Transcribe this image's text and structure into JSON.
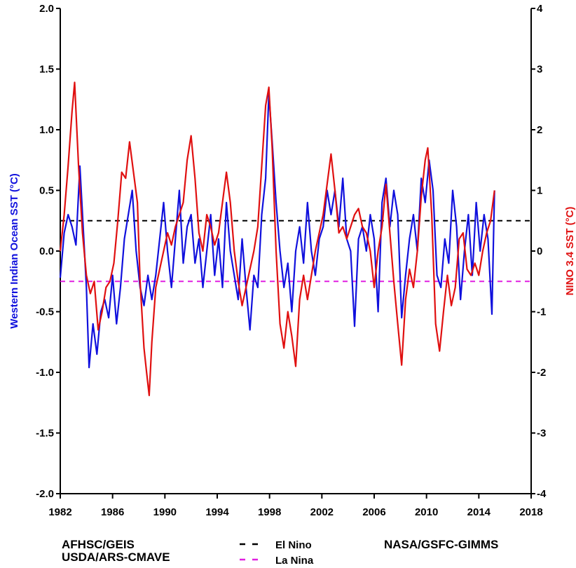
{
  "chart_data": {
    "type": "line",
    "title": "",
    "x_ticks": [
      "1982",
      "1986",
      "1990",
      "1994",
      "1998",
      "2002",
      "2006",
      "2010",
      "2014",
      "2018"
    ],
    "xlim": [
      1982,
      2018
    ],
    "left_axis": {
      "label": "Western Indian Ocean SST (°C)",
      "ylim": [
        -2.0,
        2.0
      ],
      "ticks": [
        "-2.0",
        "-1.5",
        "-1.0",
        "-0.5",
        "0.0",
        "0.5",
        "1.0",
        "1.5",
        "2.0"
      ],
      "color": "#1010dd"
    },
    "right_axis": {
      "label": "NINO 3.4 SST (°C)",
      "ylim": [
        -4,
        4
      ],
      "ticks": [
        "-4",
        "-3",
        "-2",
        "-1",
        "0",
        "1",
        "2",
        "3",
        "4"
      ],
      "color": "#e01010"
    },
    "reference_lines": [
      {
        "name": "El Nino",
        "y": 0.25,
        "axis": "left",
        "color": "#000000",
        "style": "dashed"
      },
      {
        "name": "La Nina",
        "y": -0.25,
        "axis": "left",
        "color": "#e020e0",
        "style": "dashed"
      }
    ],
    "series": [
      {
        "color": "#1010dd",
        "axis": "left",
        "points": [
          [
            1982.0,
            -0.22
          ],
          [
            1982.3,
            0.15
          ],
          [
            1982.6,
            0.3
          ],
          [
            1982.9,
            0.2
          ],
          [
            1983.2,
            0.05
          ],
          [
            1983.5,
            0.7
          ],
          [
            1983.8,
            0.1
          ],
          [
            1984.0,
            -0.3
          ],
          [
            1984.2,
            -0.96
          ],
          [
            1984.5,
            -0.6
          ],
          [
            1984.8,
            -0.85
          ],
          [
            1985.1,
            -0.5
          ],
          [
            1985.4,
            -0.4
          ],
          [
            1985.7,
            -0.55
          ],
          [
            1986.0,
            -0.2
          ],
          [
            1986.3,
            -0.6
          ],
          [
            1986.6,
            -0.3
          ],
          [
            1986.9,
            0.1
          ],
          [
            1987.2,
            0.3
          ],
          [
            1987.5,
            0.5
          ],
          [
            1987.8,
            0.0
          ],
          [
            1988.1,
            -0.3
          ],
          [
            1988.4,
            -0.45
          ],
          [
            1988.7,
            -0.2
          ],
          [
            1989.0,
            -0.4
          ],
          [
            1989.3,
            -0.2
          ],
          [
            1989.6,
            0.1
          ],
          [
            1989.9,
            0.4
          ],
          [
            1990.2,
            0.0
          ],
          [
            1990.5,
            -0.3
          ],
          [
            1990.8,
            0.1
          ],
          [
            1991.1,
            0.5
          ],
          [
            1991.4,
            -0.1
          ],
          [
            1991.7,
            0.2
          ],
          [
            1992.0,
            0.3
          ],
          [
            1992.3,
            -0.1
          ],
          [
            1992.6,
            0.1
          ],
          [
            1992.9,
            -0.3
          ],
          [
            1993.2,
            0.0
          ],
          [
            1993.5,
            0.3
          ],
          [
            1993.8,
            -0.2
          ],
          [
            1994.1,
            0.1
          ],
          [
            1994.4,
            -0.3
          ],
          [
            1994.7,
            0.4
          ],
          [
            1995.0,
            0.0
          ],
          [
            1995.3,
            -0.2
          ],
          [
            1995.6,
            -0.4
          ],
          [
            1995.9,
            0.1
          ],
          [
            1996.2,
            -0.3
          ],
          [
            1996.5,
            -0.65
          ],
          [
            1996.8,
            -0.2
          ],
          [
            1997.1,
            -0.3
          ],
          [
            1997.4,
            0.3
          ],
          [
            1997.7,
            0.6
          ],
          [
            1997.95,
            1.3
          ],
          [
            1998.2,
            0.9
          ],
          [
            1998.5,
            0.4
          ],
          [
            1998.8,
            0.0
          ],
          [
            1999.1,
            -0.3
          ],
          [
            1999.4,
            -0.1
          ],
          [
            1999.7,
            -0.5
          ],
          [
            2000.0,
            0.0
          ],
          [
            2000.3,
            0.2
          ],
          [
            2000.6,
            -0.1
          ],
          [
            2000.9,
            0.4
          ],
          [
            2001.2,
            0.0
          ],
          [
            2001.5,
            -0.2
          ],
          [
            2001.8,
            0.1
          ],
          [
            2002.1,
            0.2
          ],
          [
            2002.4,
            0.5
          ],
          [
            2002.7,
            0.3
          ],
          [
            2003.0,
            0.5
          ],
          [
            2003.3,
            0.2
          ],
          [
            2003.6,
            0.6
          ],
          [
            2003.9,
            0.1
          ],
          [
            2004.2,
            0.0
          ],
          [
            2004.5,
            -0.62
          ],
          [
            2004.8,
            0.1
          ],
          [
            2005.1,
            0.2
          ],
          [
            2005.4,
            0.0
          ],
          [
            2005.7,
            0.3
          ],
          [
            2006.0,
            0.1
          ],
          [
            2006.3,
            -0.5
          ],
          [
            2006.6,
            0.4
          ],
          [
            2006.9,
            0.6
          ],
          [
            2007.2,
            0.2
          ],
          [
            2007.5,
            0.5
          ],
          [
            2007.8,
            0.3
          ],
          [
            2008.1,
            -0.55
          ],
          [
            2008.4,
            -0.2
          ],
          [
            2008.7,
            0.1
          ],
          [
            2009.0,
            0.3
          ],
          [
            2009.3,
            0.0
          ],
          [
            2009.6,
            0.6
          ],
          [
            2009.9,
            0.4
          ],
          [
            2010.2,
            0.75
          ],
          [
            2010.5,
            0.5
          ],
          [
            2010.8,
            -0.2
          ],
          [
            2011.1,
            -0.3
          ],
          [
            2011.4,
            0.1
          ],
          [
            2011.7,
            -0.1
          ],
          [
            2012.0,
            0.5
          ],
          [
            2012.3,
            0.2
          ],
          [
            2012.6,
            -0.4
          ],
          [
            2012.9,
            0.0
          ],
          [
            2013.2,
            0.3
          ],
          [
            2013.5,
            -0.2
          ],
          [
            2013.8,
            0.4
          ],
          [
            2014.1,
            0.0
          ],
          [
            2014.4,
            0.3
          ],
          [
            2014.7,
            0.1
          ],
          [
            2015.0,
            -0.52
          ],
          [
            2015.2,
            0.5
          ]
        ]
      },
      {
        "color": "#e01010",
        "axis": "right",
        "points": [
          [
            1982.0,
            0.0
          ],
          [
            1982.3,
            0.6
          ],
          [
            1982.6,
            1.4
          ],
          [
            1982.9,
            2.3
          ],
          [
            1983.1,
            2.78
          ],
          [
            1983.4,
            1.4
          ],
          [
            1983.7,
            0.3
          ],
          [
            1984.0,
            -0.4
          ],
          [
            1984.3,
            -0.7
          ],
          [
            1984.6,
            -0.5
          ],
          [
            1984.9,
            -1.3
          ],
          [
            1985.2,
            -1.0
          ],
          [
            1985.5,
            -0.6
          ],
          [
            1985.8,
            -0.5
          ],
          [
            1986.1,
            -0.2
          ],
          [
            1986.4,
            0.5
          ],
          [
            1986.7,
            1.3
          ],
          [
            1987.0,
            1.2
          ],
          [
            1987.3,
            1.8
          ],
          [
            1987.6,
            1.3
          ],
          [
            1987.9,
            0.8
          ],
          [
            1988.1,
            -0.5
          ],
          [
            1988.4,
            -1.6
          ],
          [
            1988.6,
            -2.0
          ],
          [
            1988.8,
            -2.38
          ],
          [
            1989.0,
            -1.5
          ],
          [
            1989.3,
            -0.6
          ],
          [
            1989.6,
            -0.3
          ],
          [
            1989.9,
            0.0
          ],
          [
            1990.2,
            0.3
          ],
          [
            1990.5,
            0.1
          ],
          [
            1990.8,
            0.4
          ],
          [
            1991.1,
            0.6
          ],
          [
            1991.4,
            0.8
          ],
          [
            1991.7,
            1.5
          ],
          [
            1992.0,
            1.9
          ],
          [
            1992.3,
            1.2
          ],
          [
            1992.6,
            0.3
          ],
          [
            1992.9,
            0.0
          ],
          [
            1993.2,
            0.6
          ],
          [
            1993.5,
            0.4
          ],
          [
            1993.8,
            0.1
          ],
          [
            1994.1,
            0.3
          ],
          [
            1994.4,
            0.8
          ],
          [
            1994.7,
            1.3
          ],
          [
            1995.0,
            0.8
          ],
          [
            1995.3,
            0.0
          ],
          [
            1995.6,
            -0.5
          ],
          [
            1995.9,
            -0.9
          ],
          [
            1996.2,
            -0.6
          ],
          [
            1996.5,
            -0.3
          ],
          [
            1996.8,
            0.0
          ],
          [
            1997.1,
            0.4
          ],
          [
            1997.4,
            1.4
          ],
          [
            1997.7,
            2.4
          ],
          [
            1997.95,
            2.7
          ],
          [
            1998.2,
            1.7
          ],
          [
            1998.5,
            0.0
          ],
          [
            1998.8,
            -1.2
          ],
          [
            1999.1,
            -1.6
          ],
          [
            1999.4,
            -1.0
          ],
          [
            1999.7,
            -1.4
          ],
          [
            2000.0,
            -1.9
          ],
          [
            2000.3,
            -0.8
          ],
          [
            2000.6,
            -0.4
          ],
          [
            2000.9,
            -0.8
          ],
          [
            2001.2,
            -0.4
          ],
          [
            2001.5,
            0.0
          ],
          [
            2001.8,
            0.3
          ],
          [
            2002.1,
            0.6
          ],
          [
            2002.4,
            1.1
          ],
          [
            2002.7,
            1.6
          ],
          [
            2003.0,
            1.0
          ],
          [
            2003.3,
            0.3
          ],
          [
            2003.6,
            0.4
          ],
          [
            2003.9,
            0.2
          ],
          [
            2004.2,
            0.4
          ],
          [
            2004.5,
            0.6
          ],
          [
            2004.8,
            0.7
          ],
          [
            2005.1,
            0.4
          ],
          [
            2005.4,
            0.3
          ],
          [
            2005.7,
            0.0
          ],
          [
            2006.0,
            -0.6
          ],
          [
            2006.3,
            0.0
          ],
          [
            2006.6,
            0.4
          ],
          [
            2006.9,
            1.1
          ],
          [
            2007.2,
            0.3
          ],
          [
            2007.5,
            -0.5
          ],
          [
            2007.8,
            -1.2
          ],
          [
            2008.1,
            -1.88
          ],
          [
            2008.4,
            -0.8
          ],
          [
            2008.7,
            -0.3
          ],
          [
            2009.0,
            -0.6
          ],
          [
            2009.3,
            0.0
          ],
          [
            2009.6,
            0.9
          ],
          [
            2009.9,
            1.5
          ],
          [
            2010.1,
            1.7
          ],
          [
            2010.4,
            0.6
          ],
          [
            2010.7,
            -1.2
          ],
          [
            2011.0,
            -1.65
          ],
          [
            2011.3,
            -1.0
          ],
          [
            2011.6,
            -0.4
          ],
          [
            2011.9,
            -0.9
          ],
          [
            2012.2,
            -0.6
          ],
          [
            2012.5,
            0.2
          ],
          [
            2012.8,
            0.3
          ],
          [
            2013.1,
            -0.3
          ],
          [
            2013.4,
            -0.4
          ],
          [
            2013.7,
            -0.2
          ],
          [
            2014.0,
            -0.4
          ],
          [
            2014.3,
            0.0
          ],
          [
            2014.6,
            0.3
          ],
          [
            2014.9,
            0.5
          ],
          [
            2015.2,
            1.0
          ]
        ]
      }
    ]
  },
  "footer": {
    "left_line1": "AFHSC/GEIS",
    "left_line2": "USDA/ARS-CMAVE",
    "legend_el_nino": "El Nino",
    "legend_la_nina": "La Nina",
    "right": "NASA/GSFC-GIMMS"
  }
}
